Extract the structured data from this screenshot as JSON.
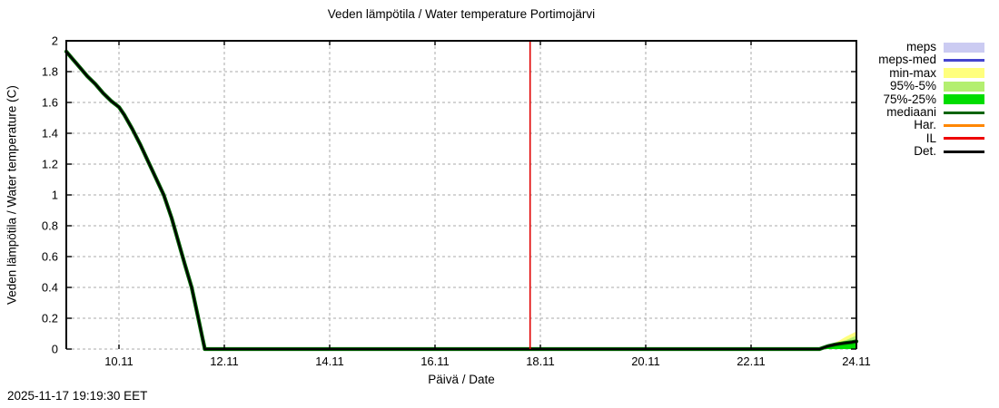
{
  "timestamp": "2025-11-17 19:19:30 EET",
  "chart_data": {
    "type": "line",
    "title": "Veden lämpötila / Water temperature Portimojärvi",
    "xlabel": "Päivä / Date",
    "ylabel": "Veden lämpötila / Water temperature (C)",
    "xlim": [
      9,
      24
    ],
    "ylim": [
      0,
      2
    ],
    "grid": true,
    "legend_position": "outside-top-right",
    "x_ticks": [
      {
        "v": 10,
        "label": "10.11"
      },
      {
        "v": 12,
        "label": "12.11"
      },
      {
        "v": 14,
        "label": "14.11"
      },
      {
        "v": 16,
        "label": "16.11"
      },
      {
        "v": 18,
        "label": "18.11"
      },
      {
        "v": 20,
        "label": "20.11"
      },
      {
        "v": 22,
        "label": "22.11"
      },
      {
        "v": 24,
        "label": "24.11"
      }
    ],
    "y_ticks": [
      {
        "v": 0,
        "label": "0"
      },
      {
        "v": 0.2,
        "label": "0.2"
      },
      {
        "v": 0.4,
        "label": "0.4"
      },
      {
        "v": 0.6,
        "label": "0.6"
      },
      {
        "v": 0.8,
        "label": "0.8"
      },
      {
        "v": 1,
        "label": "1"
      },
      {
        "v": 1.2,
        "label": "1.2"
      },
      {
        "v": 1.4,
        "label": "1.4"
      },
      {
        "v": 1.6,
        "label": "1.6"
      },
      {
        "v": 1.8,
        "label": "1.8"
      },
      {
        "v": 2,
        "label": "2"
      }
    ],
    "now_line": {
      "x": 17.805,
      "color": "#e00000"
    },
    "bands": [
      {
        "name": "min-max",
        "color": "#ffff7d",
        "baseline": 0,
        "upper": [
          [
            22.9,
            0.004
          ],
          [
            23.3,
            0.012
          ],
          [
            23.5,
            0.03
          ],
          [
            23.65,
            0.05
          ],
          [
            23.8,
            0.08
          ],
          [
            24,
            0.115
          ]
        ]
      },
      {
        "name": "95%-5%",
        "color": "#b3ef70",
        "baseline": 0,
        "upper": [
          [
            23.2,
            0.006
          ],
          [
            23.45,
            0.02
          ],
          [
            23.65,
            0.04
          ],
          [
            23.85,
            0.065
          ],
          [
            24,
            0.088
          ]
        ]
      },
      {
        "name": "75%-25%",
        "color": "#00dd00",
        "baseline": 0,
        "upper": [
          [
            23.3,
            0.008
          ],
          [
            23.5,
            0.022
          ],
          [
            23.7,
            0.038
          ],
          [
            23.85,
            0.05
          ],
          [
            24,
            0.06
          ]
        ]
      }
    ],
    "series": [
      {
        "name": "mediaani",
        "color": "#006400",
        "width": 4.2,
        "points": [
          [
            9.0,
            1.93
          ],
          [
            9.1,
            1.89
          ],
          [
            9.25,
            1.83
          ],
          [
            9.4,
            1.77
          ],
          [
            9.55,
            1.72
          ],
          [
            9.7,
            1.66
          ],
          [
            9.85,
            1.61
          ],
          [
            10.0,
            1.57
          ],
          [
            10.1,
            1.52
          ],
          [
            10.25,
            1.43
          ],
          [
            10.4,
            1.33
          ],
          [
            10.55,
            1.22
          ],
          [
            10.7,
            1.11
          ],
          [
            10.85,
            1.0
          ],
          [
            11.0,
            0.85
          ],
          [
            11.1,
            0.73
          ],
          [
            11.25,
            0.55
          ],
          [
            11.38,
            0.4
          ],
          [
            11.5,
            0.21
          ],
          [
            11.58,
            0.08
          ],
          [
            11.63,
            0
          ],
          [
            23.3,
            0
          ],
          [
            23.45,
            0.018
          ],
          [
            23.6,
            0.03
          ],
          [
            23.75,
            0.038
          ],
          [
            23.9,
            0.044
          ],
          [
            24,
            0.05
          ]
        ]
      },
      {
        "name": "Det.",
        "color": "#000000",
        "width": 2.2,
        "points": [
          [
            9.0,
            1.93
          ],
          [
            9.1,
            1.89
          ],
          [
            9.25,
            1.83
          ],
          [
            9.4,
            1.77
          ],
          [
            9.55,
            1.72
          ],
          [
            9.7,
            1.66
          ],
          [
            9.85,
            1.61
          ],
          [
            10.0,
            1.57
          ],
          [
            10.1,
            1.52
          ],
          [
            10.25,
            1.43
          ],
          [
            10.4,
            1.33
          ],
          [
            10.55,
            1.22
          ],
          [
            10.7,
            1.11
          ],
          [
            10.85,
            1.0
          ],
          [
            11.0,
            0.85
          ],
          [
            11.1,
            0.73
          ],
          [
            11.25,
            0.55
          ],
          [
            11.38,
            0.4
          ],
          [
            11.5,
            0.21
          ],
          [
            11.58,
            0.08
          ],
          [
            11.63,
            0
          ],
          [
            23.3,
            0
          ],
          [
            23.45,
            0.018
          ],
          [
            23.6,
            0.03
          ],
          [
            23.75,
            0.038
          ],
          [
            23.9,
            0.044
          ],
          [
            24,
            0.05
          ]
        ]
      }
    ]
  },
  "legend": [
    {
      "label": "meps",
      "type": "band",
      "color": "#cbcbf2"
    },
    {
      "label": "meps-med",
      "type": "line",
      "color": "#4545cf"
    },
    {
      "label": "min-max",
      "type": "band",
      "color": "#ffff7d"
    },
    {
      "label": "95%-5%",
      "type": "band",
      "color": "#b3ef70"
    },
    {
      "label": "75%-25%",
      "type": "band",
      "color": "#00dd00"
    },
    {
      "label": "mediaani",
      "type": "line",
      "color": "#006400"
    },
    {
      "label": "Har.",
      "type": "line",
      "color": "#ff8600"
    },
    {
      "label": "IL",
      "type": "line",
      "color": "#ee0000"
    },
    {
      "label": "Det.",
      "type": "line",
      "color": "#000000"
    }
  ]
}
